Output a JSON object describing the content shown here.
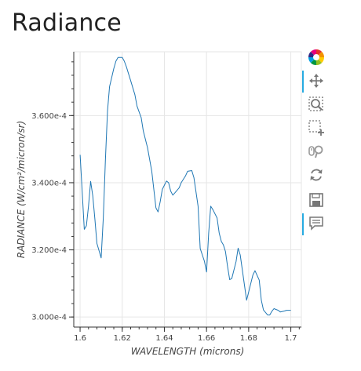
{
  "page": {
    "title": "Radiance"
  },
  "toolbar": {
    "tools": [
      {
        "name": "bokeh-logo-icon",
        "active": false
      },
      {
        "name": "pan-tool-icon",
        "active": true
      },
      {
        "name": "box-zoom-tool-icon",
        "active": false
      },
      {
        "name": "box-select-tool-icon",
        "active": false
      },
      {
        "name": "wheel-zoom-tool-icon",
        "active": false
      },
      {
        "name": "reset-tool-icon",
        "active": false
      },
      {
        "name": "save-tool-icon",
        "active": false
      },
      {
        "name": "hover-tool-icon",
        "active": true
      }
    ]
  },
  "chart_data": {
    "type": "line",
    "title": "Radiance",
    "xlabel": "WAVELENGTH (microns)",
    "ylabel": "RADIANCE (W/cm²/micron/sr)",
    "xlim": [
      1.597,
      1.705
    ],
    "ylim": [
      0.000297,
      0.000379
    ],
    "xticks": [
      1.6,
      1.62,
      1.64,
      1.66,
      1.68,
      1.7
    ],
    "xtick_labels": [
      "1.6",
      "1.62",
      "1.64",
      "1.66",
      "1.68",
      "1.7"
    ],
    "yticks": [
      0.0003,
      0.00032,
      0.00034,
      0.00036
    ],
    "ytick_labels": [
      "3.000e-4",
      "3.200e-4",
      "3.400e-4",
      "3.600e-4"
    ],
    "grid": true,
    "series": [
      {
        "color": "#1f77b4",
        "x": [
          1.6,
          1.602,
          1.603,
          1.604,
          1.605,
          1.606,
          1.607,
          1.608,
          1.61,
          1.611,
          1.612,
          1.613,
          1.614,
          1.616,
          1.617,
          1.618,
          1.62,
          1.621,
          1.622,
          1.624,
          1.626,
          1.627,
          1.629,
          1.63,
          1.632,
          1.634,
          1.636,
          1.637,
          1.638,
          1.639,
          1.641,
          1.642,
          1.643,
          1.644,
          1.645,
          1.647,
          1.648,
          1.65,
          1.651,
          1.653,
          1.654,
          1.656,
          1.657,
          1.659,
          1.66,
          1.661,
          1.662,
          1.663,
          1.665,
          1.666,
          1.667,
          1.668,
          1.669,
          1.67,
          1.671,
          1.672,
          1.674,
          1.675,
          1.676,
          1.678,
          1.679,
          1.68,
          1.682,
          1.683,
          1.685,
          1.686,
          1.687,
          1.689,
          1.69,
          1.691,
          1.692,
          1.694,
          1.695,
          1.697,
          1.698,
          1.7
        ],
        "y": [
          0.0003483,
          0.0003261,
          0.0003272,
          0.0003331,
          0.0003404,
          0.0003361,
          0.0003292,
          0.0003219,
          0.0003176,
          0.0003294,
          0.0003467,
          0.0003614,
          0.0003686,
          0.000374,
          0.0003762,
          0.0003773,
          0.0003773,
          0.0003762,
          0.0003745,
          0.0003704,
          0.0003662,
          0.0003628,
          0.0003594,
          0.0003554,
          0.0003504,
          0.0003434,
          0.0003325,
          0.0003313,
          0.0003343,
          0.000338,
          0.0003405,
          0.00034,
          0.0003375,
          0.0003363,
          0.000337,
          0.0003385,
          0.00034,
          0.000342,
          0.0003434,
          0.0003436,
          0.0003415,
          0.000333,
          0.0003204,
          0.0003166,
          0.0003134,
          0.000325,
          0.000333,
          0.000332,
          0.0003295,
          0.000325,
          0.0003225,
          0.0003215,
          0.0003195,
          0.000315,
          0.0003111,
          0.0003115,
          0.0003165,
          0.0003205,
          0.0003185,
          0.0003095,
          0.000305,
          0.0003075,
          0.0003125,
          0.0003138,
          0.000311,
          0.000305,
          0.0003021,
          0.0003006,
          0.0003006,
          0.0003017,
          0.0003025,
          0.000302,
          0.0003015,
          0.0003018,
          0.000302,
          0.000302
        ]
      }
    ]
  }
}
